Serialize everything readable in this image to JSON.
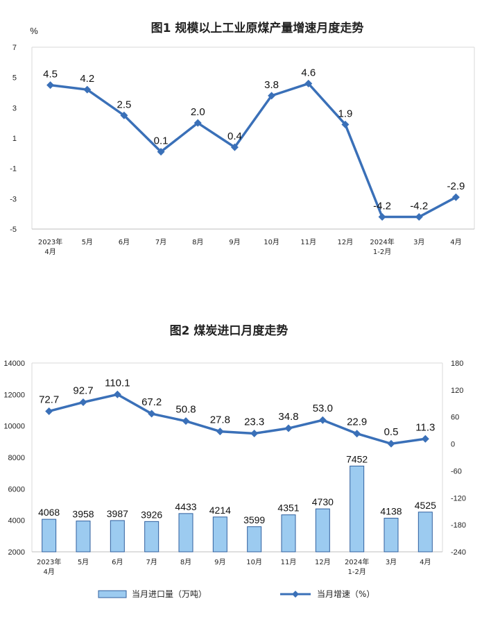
{
  "chart_data": [
    {
      "type": "line",
      "title": "图1  规模以上工业原煤产量增速月度走势",
      "ylabel": "%",
      "ylim": [
        -5,
        7
      ],
      "yticks": [
        "7",
        "5",
        "3",
        "1",
        "-1",
        "-3",
        "-5"
      ],
      "categories": [
        [
          "2023年",
          "4月"
        ],
        [
          "5月"
        ],
        [
          "6月"
        ],
        [
          "7月"
        ],
        [
          "8月"
        ],
        [
          "9月"
        ],
        [
          "10月"
        ],
        [
          "11月"
        ],
        [
          "12月"
        ],
        [
          "2024年",
          "1-2月"
        ],
        [
          "3月"
        ],
        [
          "4月"
        ]
      ],
      "values": [
        4.5,
        4.2,
        2.5,
        0.1,
        2.0,
        0.4,
        3.8,
        4.6,
        1.9,
        -4.2,
        -4.2,
        -2.9
      ],
      "labels": [
        "4.5",
        "4.2",
        "2.5",
        "0.1",
        "2.0",
        "0.4",
        "3.8",
        "4.6",
        "1.9",
        "-4.2",
        "-4.2",
        "-2.9"
      ],
      "color": "#3a70b8"
    },
    {
      "type": "bar+line",
      "title": "图2  煤炭进口月度走势",
      "categories": [
        [
          "2023年",
          "4月"
        ],
        [
          "5月"
        ],
        [
          "6月"
        ],
        [
          "7月"
        ],
        [
          "8月"
        ],
        [
          "9月"
        ],
        [
          "10月"
        ],
        [
          "11月"
        ],
        [
          "12月"
        ],
        [
          "2024年",
          "1-2月"
        ],
        [
          "3月"
        ],
        [
          "4月"
        ]
      ],
      "left_axis": {
        "ylim": [
          2000,
          14000
        ],
        "ticks": [
          "14000",
          "12000",
          "10000",
          "8000",
          "6000",
          "4000",
          "2000"
        ]
      },
      "right_axis": {
        "ylim": [
          -240,
          180
        ],
        "ticks": [
          "180",
          "120",
          "60",
          "0",
          "-60",
          "-120",
          "-180",
          "-240"
        ]
      },
      "series": [
        {
          "name": "当月进口量（万吨）",
          "type": "bar",
          "axis": "left",
          "values": [
            4068,
            3958,
            3987,
            3926,
            4433,
            4214,
            3599,
            4351,
            4730,
            7452,
            4138,
            4525
          ],
          "labels": [
            "4068",
            "3958",
            "3987",
            "3926",
            "4433",
            "4214",
            "3599",
            "4351",
            "4730",
            "7452",
            "4138",
            "4525"
          ],
          "color": "#9ccbf0"
        },
        {
          "name": "当月增速（%）",
          "type": "line",
          "axis": "right",
          "values": [
            72.7,
            92.7,
            110.1,
            67.2,
            50.8,
            27.8,
            23.3,
            34.8,
            53.0,
            22.9,
            0.5,
            11.3
          ],
          "labels": [
            "72.7",
            "92.7",
            "110.1",
            "67.2",
            "50.8",
            "27.8",
            "23.3",
            "34.8",
            "53.0",
            "22.9",
            "0.5",
            "11.3"
          ],
          "color": "#3a70b8"
        }
      ]
    }
  ]
}
